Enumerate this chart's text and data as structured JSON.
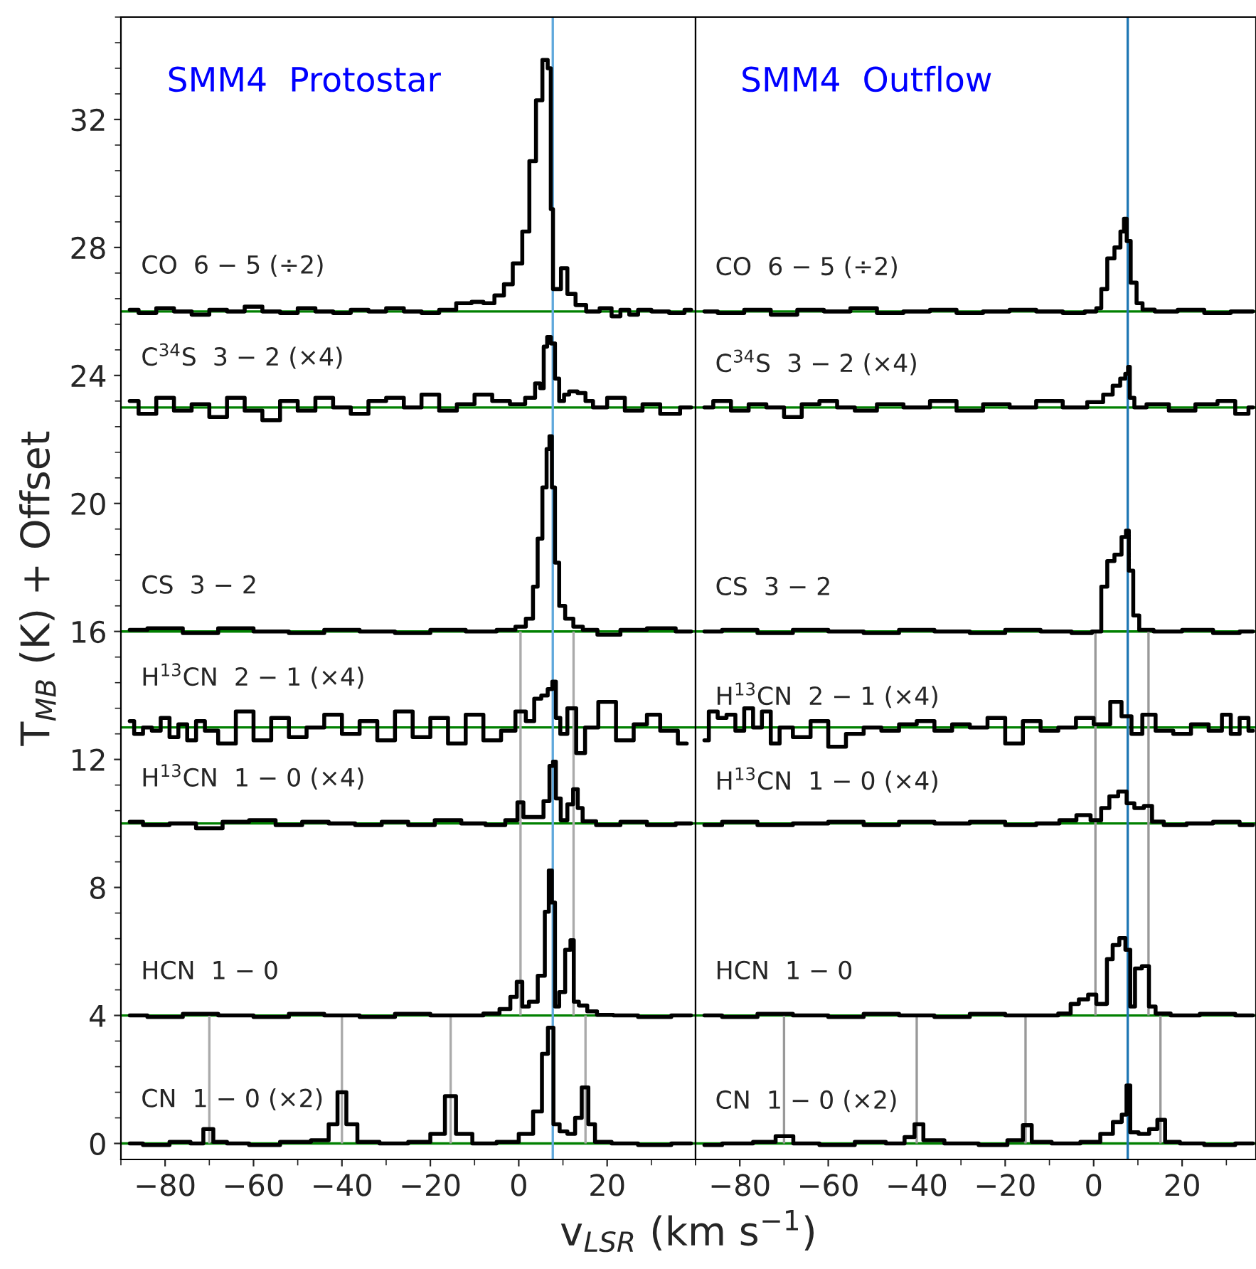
{
  "chart_data": [
    {
      "type": "step",
      "title": "SMM4  Protostar",
      "xlabel": "v$_{LSR}$ (km s$^{−1}$)",
      "ylabel": "T$_{MB}$ (K) + Offset",
      "xlim": [
        -90,
        40
      ],
      "xticks": [
        {
          "value": -80,
          "label": "−80"
        },
        {
          "value": -60,
          "label": "−60"
        },
        {
          "value": -40,
          "label": "−40"
        },
        {
          "value": -20,
          "label": "−20"
        },
        0,
        20
      ],
      "ylim": [
        -0.5,
        35.2
      ],
      "yticks": [
        0,
        4,
        8,
        12,
        16,
        20,
        24,
        28,
        32
      ],
      "ref_lines": [
        {
          "axis": "y",
          "value": 0,
          "color": "#008000"
        },
        {
          "axis": "y",
          "value": 4,
          "color": "#008000"
        },
        {
          "axis": "y",
          "value": 10,
          "color": "#008000"
        },
        {
          "axis": "y",
          "value": 13,
          "color": "#008000"
        },
        {
          "axis": "y",
          "value": 16,
          "color": "#008000"
        },
        {
          "axis": "y",
          "value": 23,
          "color": "#008000"
        },
        {
          "axis": "y",
          "value": 26,
          "color": "#008000"
        },
        {
          "axis": "x",
          "value": 7.7,
          "color": "#5fa8dc"
        }
      ],
      "series": [
        {
          "type": "line",
          "color": "#aaaaaa",
          "x": [
            0.4,
            0.4
          ],
          "values": [
            4,
            16
          ]
        },
        {
          "type": "line",
          "color": "#aaaaaa",
          "x": [
            12.4,
            12.4
          ],
          "values": [
            4,
            16
          ]
        },
        {
          "type": "line",
          "color": "#aaaaaa",
          "x": [
            -70,
            -70
          ],
          "values": [
            0,
            4
          ]
        },
        {
          "type": "line",
          "color": "#aaaaaa",
          "x": [
            -40,
            -40
          ],
          "values": [
            0,
            4
          ]
        },
        {
          "type": "line",
          "color": "#aaaaaa",
          "x": [
            -15.4,
            -15.4
          ],
          "values": [
            0,
            4
          ]
        },
        {
          "type": "line",
          "color": "#aaaaaa",
          "x": [
            15.1,
            15.1
          ],
          "values": [
            0,
            4
          ]
        },
        {
          "name": "CO  6 − 5 (÷2)",
          "color": "#000000",
          "x": [
            -88,
            -84,
            -80,
            -76,
            -72,
            -68,
            -64,
            -60,
            -56,
            -52,
            -48,
            -44,
            -40,
            -36,
            -32,
            -28,
            -24,
            -20,
            -16,
            -12.3,
            -9,
            -7,
            -4,
            -2.7,
            0,
            1.6,
            3.2,
            4.6,
            6.1,
            7,
            7.5,
            8,
            8.9,
            10.2,
            11.8,
            13.9,
            16.6,
            20,
            22,
            24,
            26,
            28,
            32,
            36,
            39
          ],
          "values": [
            26.05,
            25.95,
            26.1,
            26.0,
            25.9,
            26.05,
            26.0,
            26.15,
            26.0,
            25.95,
            26.1,
            26.0,
            25.95,
            26.05,
            26.0,
            26.1,
            26.0,
            25.95,
            26.05,
            26.26,
            26.3,
            26.26,
            26.5,
            26.85,
            27.5,
            28.5,
            30.7,
            32.6,
            33.86,
            33.6,
            29.2,
            26.7,
            26.7,
            27.35,
            26.55,
            26.2,
            26.0,
            26.1,
            25.85,
            26.05,
            25.9,
            26.05,
            26.0,
            25.95,
            26.05
          ]
        },
        {
          "name": "C$^{34}$S  3 − 2 (×4)",
          "color": "#000000",
          "x": [
            -88,
            -84,
            -80,
            -76,
            -72,
            -68,
            -64,
            -60,
            -56,
            -52,
            -48,
            -44,
            -40,
            -36,
            -32,
            -28,
            -24,
            -20,
            -16,
            -12,
            -8,
            -4,
            0,
            2.9,
            4.5,
            5.2,
            6.1,
            6.75,
            7.8,
            8.6,
            9.7,
            10.8,
            12,
            14.6,
            15.6,
            18,
            22,
            26,
            30,
            34,
            39
          ],
          "values": [
            23.2,
            22.8,
            23.3,
            22.9,
            23.1,
            22.7,
            23.3,
            22.9,
            22.6,
            23.2,
            22.9,
            23.3,
            23.0,
            22.8,
            23.2,
            23.3,
            23.0,
            23.4,
            22.9,
            23.1,
            23.4,
            23.2,
            23.1,
            23.3,
            23.75,
            23.6,
            24.9,
            25.2,
            25.0,
            23.9,
            23.2,
            23.4,
            23.5,
            23.45,
            23.2,
            23.0,
            23.3,
            22.9,
            23.1,
            22.8,
            23.0
          ]
        },
        {
          "name": "CS  3 − 2",
          "color": "#000000",
          "x": [
            -88,
            -80,
            -72,
            -64,
            -56,
            -48,
            -40,
            -32,
            -24,
            -16,
            -8,
            -2,
            0.5,
            2.7,
            3.75,
            4.8,
            5.9,
            6.7,
            7.2,
            7.8,
            8.6,
            9.7,
            11.3,
            13.4,
            15.6,
            20,
            26,
            32,
            39
          ],
          "values": [
            16.05,
            16.1,
            15.95,
            16.1,
            16.0,
            15.95,
            16.05,
            16.0,
            15.95,
            16.05,
            16.0,
            16.05,
            16.15,
            16.4,
            17.4,
            18.9,
            20.5,
            21.7,
            22.1,
            20.5,
            18.15,
            16.8,
            16.4,
            16.15,
            16.05,
            15.9,
            16.05,
            16.1,
            16.0
          ]
        },
        {
          "name": "H$^{13}$CN  2 − 1 (×4)",
          "color": "#000000",
          "x": [
            -88,
            -86,
            -84,
            -82,
            -80,
            -78,
            -76,
            -74,
            -72,
            -70,
            -66,
            -62,
            -58,
            -54,
            -50,
            -46,
            -42,
            -38,
            -34,
            -30,
            -26,
            -22,
            -18,
            -14,
            -10,
            -6,
            -2,
            0.5,
            2.7,
            4.3,
            5.9,
            7.2,
            8.0,
            8.8,
            10,
            12,
            14,
            16,
            20,
            24,
            28,
            30,
            34,
            38
          ],
          "values": [
            13.2,
            12.8,
            13.0,
            12.9,
            13.3,
            12.7,
            13.1,
            12.6,
            13.2,
            12.9,
            12.5,
            13.5,
            12.6,
            13.3,
            12.7,
            13.0,
            13.4,
            12.8,
            13.2,
            12.6,
            13.5,
            12.7,
            13.3,
            12.5,
            13.4,
            12.6,
            12.9,
            13.5,
            13.2,
            13.9,
            14.0,
            14.2,
            14.43,
            13.3,
            12.8,
            13.6,
            12.2,
            13.0,
            13.8,
            12.6,
            13.1,
            13.4,
            12.9,
            12.5
          ]
        },
        {
          "name": "H$^{13}$CN  1 − 0 (×4)",
          "color": "#000000",
          "x": [
            -88,
            -82,
            -76,
            -70,
            -64,
            -58,
            -52,
            -46,
            -40,
            -34,
            -28,
            -22,
            -16,
            -10,
            -5,
            -1.1,
            0.5,
            1.6,
            4.8,
            6.4,
            7.5,
            8.0,
            8.8,
            10.2,
            11.8,
            12.8,
            13.9,
            15.0,
            20,
            26,
            32,
            39
          ],
          "values": [
            10.05,
            9.95,
            10.0,
            9.85,
            10.05,
            10.1,
            9.95,
            10.05,
            10.0,
            9.95,
            10.05,
            9.95,
            10.1,
            10.0,
            9.95,
            10.1,
            10.66,
            10.2,
            10.2,
            10.7,
            11.8,
            11.93,
            10.78,
            10.1,
            10.6,
            11.07,
            10.48,
            10.07,
            9.95,
            10.05,
            9.95,
            10.0
          ]
        },
        {
          "name": "HCN  1 − 0",
          "color": "#000000",
          "x": [
            -88,
            -80,
            -72,
            -64,
            -56,
            -48,
            -40,
            -32,
            -24,
            -16,
            -10,
            -6,
            -2.7,
            -1.1,
            0.2,
            1.4,
            3.2,
            5.4,
            6.4,
            7.2,
            7.8,
            8.6,
            9.7,
            11.3,
            12.1,
            12.8,
            14.4,
            16.6,
            18.8,
            24,
            30,
            39
          ],
          "values": [
            4.0,
            3.95,
            4.05,
            4.0,
            3.95,
            4.05,
            4.0,
            3.95,
            4.05,
            4.0,
            4.0,
            4.06,
            4.2,
            4.58,
            5.05,
            4.28,
            4.43,
            5.24,
            7.24,
            8.53,
            7.53,
            4.28,
            4.73,
            6.05,
            6.35,
            4.43,
            4.31,
            4.13,
            4.02,
            4.0,
            3.95,
            4.0
          ]
        },
        {
          "name": "CN  1 − 0 (×2)",
          "color": "#000000",
          "x": [
            -88,
            -82,
            -76,
            -72.5,
            -70.2,
            -68,
            -64,
            -58,
            -50,
            -44,
            -42,
            -40,
            -38,
            -35,
            -28,
            -22,
            -18,
            -15.4,
            -13,
            -8,
            -2,
            2,
            4.5,
            6,
            7.2,
            8.5,
            10,
            12,
            13.5,
            15,
            16.5,
            18,
            24,
            30,
            39
          ],
          "values": [
            0.0,
            -0.05,
            0.05,
            0.0,
            0.45,
            0.05,
            0.0,
            -0.05,
            0.05,
            0.1,
            0.6,
            1.6,
            0.6,
            0.05,
            0.0,
            0.05,
            0.3,
            1.48,
            0.3,
            0.0,
            0.05,
            0.3,
            1.0,
            2.8,
            3.62,
            0.6,
            0.38,
            0.3,
            0.8,
            1.75,
            0.6,
            0.05,
            0.0,
            -0.05,
            0.0
          ]
        }
      ]
    },
    {
      "type": "step",
      "title": "SMM4  Outflow",
      "tick_labels": "x",
      "xlim": [
        -90,
        36.7
      ],
      "xticks": [
        {
          "value": -80,
          "label": "−80"
        },
        {
          "value": -60,
          "label": "−60"
        },
        {
          "value": -40,
          "label": "−40"
        },
        {
          "value": -20,
          "label": "−20"
        },
        0,
        20
      ],
      "ylim": [
        -0.5,
        35.2
      ],
      "ref_lines": [
        {
          "axis": "y",
          "value": 0,
          "color": "#008000"
        },
        {
          "axis": "y",
          "value": 4,
          "color": "#008000"
        },
        {
          "axis": "y",
          "value": 10,
          "color": "#008000"
        },
        {
          "axis": "y",
          "value": 13,
          "color": "#008000"
        },
        {
          "axis": "y",
          "value": 16,
          "color": "#008000"
        },
        {
          "axis": "y",
          "value": 23,
          "color": "#008000"
        },
        {
          "axis": "y",
          "value": 26,
          "color": "#008000"
        },
        {
          "axis": "x",
          "value": 7.7,
          "color": "#1f77b4"
        }
      ],
      "series": [
        {
          "type": "line",
          "color": "#999999",
          "x": [
            0.4,
            0.4
          ],
          "values": [
            4,
            16
          ]
        },
        {
          "type": "line",
          "color": "#999999",
          "x": [
            12.4,
            12.4
          ],
          "values": [
            4,
            16
          ]
        },
        {
          "type": "line",
          "color": "#999999",
          "x": [
            -70,
            -70
          ],
          "values": [
            0,
            4
          ]
        },
        {
          "type": "line",
          "color": "#999999",
          "x": [
            -40,
            -40
          ],
          "values": [
            0,
            4
          ]
        },
        {
          "type": "line",
          "color": "#999999",
          "x": [
            -15.4,
            -15.4
          ],
          "values": [
            0,
            4
          ]
        },
        {
          "type": "line",
          "color": "#999999",
          "x": [
            15.1,
            15.1
          ],
          "values": [
            0,
            4
          ]
        },
        {
          "name": "CO  6 − 5 (÷2)",
          "color": "#000000",
          "x": [
            -88,
            -82,
            -76,
            -70,
            -64,
            -58,
            -52,
            -46,
            -40,
            -34,
            -28,
            -22,
            -16,
            -10,
            -4,
            0,
            1.2,
            2.25,
            3.9,
            5.5,
            6.6,
            7.1,
            7.85,
            8.9,
            10.5,
            11.6,
            16,
            22,
            28,
            34,
            36
          ],
          "values": [
            26.0,
            25.95,
            26.05,
            25.9,
            26.05,
            26.0,
            26.1,
            25.95,
            26.0,
            26.05,
            25.95,
            26.0,
            26.05,
            26.0,
            25.95,
            26.0,
            26.1,
            26.7,
            27.66,
            28.0,
            28.5,
            28.9,
            28.2,
            26.9,
            26.26,
            26.06,
            26.0,
            26.05,
            25.95,
            26.0,
            26.0
          ]
        },
        {
          "name": "C$^{34}$S  3 − 2 (×4)",
          "color": "#000000",
          "x": [
            -88,
            -84,
            -80,
            -76,
            -72,
            -68,
            -64,
            -60,
            -56,
            -52,
            -46,
            -40,
            -34,
            -28,
            -22,
            -16,
            -10,
            -4,
            1.1,
            3.2,
            5.4,
            6.6,
            7.7,
            7.85,
            8.5,
            9.9,
            14,
            20,
            26,
            30,
            34,
            36
          ],
          "values": [
            23.0,
            23.2,
            22.9,
            23.1,
            23.0,
            22.7,
            23.1,
            23.2,
            23.0,
            22.9,
            23.1,
            23.0,
            23.2,
            22.9,
            23.1,
            23.0,
            23.2,
            23.0,
            23.17,
            23.4,
            23.68,
            23.9,
            24.05,
            24.27,
            23.3,
            23.0,
            23.1,
            22.9,
            23.1,
            23.2,
            22.8,
            23.0
          ]
        },
        {
          "name": "CS  3 − 2",
          "color": "#000000",
          "x": [
            -88,
            -80,
            -72,
            -64,
            -56,
            -48,
            -40,
            -32,
            -24,
            -16,
            -8,
            -2,
            1.2,
            2.25,
            3.9,
            5.5,
            7.1,
            7.5,
            8.4,
            9.5,
            11.1,
            16,
            24,
            30,
            36
          ],
          "values": [
            16.0,
            16.05,
            15.95,
            16.05,
            16.0,
            15.95,
            16.05,
            16.0,
            15.95,
            16.05,
            16.0,
            15.95,
            16.0,
            17.4,
            18.2,
            18.4,
            18.95,
            19.15,
            17.9,
            16.5,
            16.05,
            16.0,
            16.05,
            15.95,
            16.0
          ]
        },
        {
          "name": "H$^{13}$CN  2 − 1 (×4)",
          "color": "#000000",
          "x": [
            -88,
            -86,
            -84,
            -82,
            -80,
            -78,
            -76,
            -74,
            -72,
            -70,
            -66,
            -62,
            -58,
            -54,
            -50,
            -46,
            -42,
            -38,
            -34,
            -30,
            -26,
            -22,
            -18,
            -14,
            -10,
            -6,
            -2,
            2,
            5.5,
            7.1,
            10,
            12,
            16,
            20,
            24,
            28,
            30,
            32,
            34,
            36
          ],
          "values": [
            12.6,
            13.5,
            13.3,
            13.4,
            12.9,
            13.6,
            13.0,
            13.5,
            12.5,
            13.0,
            12.7,
            13.2,
            12.4,
            12.8,
            13.0,
            12.9,
            13.1,
            13.2,
            12.9,
            13.1,
            13.0,
            13.3,
            12.5,
            13.2,
            12.9,
            13.0,
            13.3,
            13.1,
            13.8,
            13.35,
            12.8,
            13.4,
            12.9,
            12.8,
            13.1,
            12.9,
            13.4,
            12.8,
            13.3,
            12.9
          ]
        },
        {
          "name": "H$^{13}$CN  1 − 0 (×4)",
          "color": "#000000",
          "x": [
            -88,
            -80,
            -72,
            -64,
            -56,
            -48,
            -40,
            -32,
            -24,
            -16,
            -10,
            -5.5,
            -2.3,
            0.9,
            2.5,
            4.6,
            6.5,
            8.4,
            10.0,
            12.7,
            13.7,
            18,
            24,
            30,
            36
          ],
          "values": [
            9.95,
            10.05,
            9.95,
            10.0,
            10.05,
            9.95,
            10.05,
            10.0,
            10.05,
            9.95,
            10.0,
            10.1,
            10.26,
            10.1,
            10.48,
            10.85,
            11.0,
            10.63,
            10.48,
            10.55,
            10.06,
            9.95,
            10.0,
            10.05,
            9.95
          ]
        },
        {
          "name": "HCN  1 − 0",
          "color": "#000000",
          "x": [
            -88,
            -80,
            -72,
            -64,
            -56,
            -48,
            -40,
            -32,
            -24,
            -16,
            -10,
            -6.0,
            -4.4,
            -2.3,
            -0.2,
            1.4,
            2.5,
            3.5,
            5.1,
            6.5,
            7.85,
            8.7,
            10.0,
            11.8,
            13.2,
            14.8,
            20,
            28,
            36
          ],
          "values": [
            4.0,
            3.95,
            4.05,
            4.0,
            3.95,
            4.05,
            4.0,
            3.95,
            4.05,
            4.0,
            4.0,
            4.06,
            4.36,
            4.5,
            4.65,
            4.36,
            4.36,
            5.76,
            6.2,
            6.42,
            6.05,
            4.28,
            5.47,
            5.54,
            4.28,
            4.06,
            4.0,
            4.05,
            4.0
          ]
        },
        {
          "name": "CN  1 − 0 (×2)",
          "color": "#000000",
          "x": [
            -88,
            -80,
            -74,
            -69.8,
            -66,
            -58,
            -50,
            -44,
            -41.5,
            -39.5,
            -37.5,
            -30,
            -22,
            -17,
            -15,
            -13,
            -6,
            0,
            3.0,
            5.7,
            7.0,
            7.85,
            8.7,
            11.6,
            13.5,
            15.3,
            17,
            22,
            28,
            36
          ],
          "values": [
            -0.05,
            0.0,
            0.05,
            0.23,
            0.0,
            -0.05,
            0.05,
            0.0,
            0.2,
            0.6,
            0.1,
            0.0,
            -0.05,
            0.1,
            0.57,
            0.05,
            0.0,
            0.05,
            0.3,
            0.67,
            0.9,
            1.81,
            0.35,
            0.3,
            0.45,
            0.74,
            0.05,
            0.0,
            -0.05,
            0.0
          ]
        }
      ]
    }
  ]
}
